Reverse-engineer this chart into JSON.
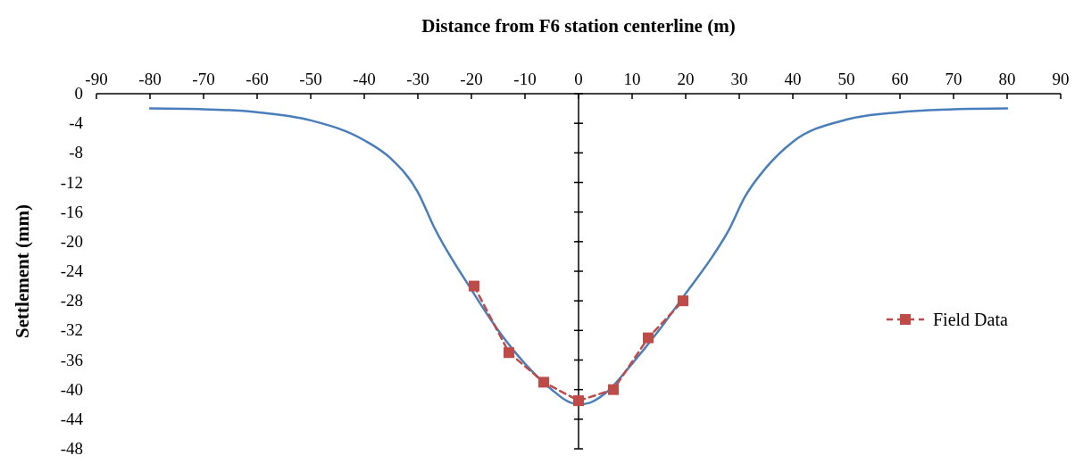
{
  "chart_data": {
    "type": "line",
    "xlabel": "Distance from F6 station centerline (m)",
    "ylabel": "Settlement (mm)",
    "xlim": [
      -90,
      90
    ],
    "xticks": [
      -90,
      -80,
      -70,
      -60,
      -50,
      -40,
      -30,
      -20,
      -10,
      0,
      10,
      20,
      30,
      40,
      50,
      60,
      70,
      80,
      90
    ],
    "ylim": [
      -48,
      0
    ],
    "yticks": [
      0,
      -4,
      -8,
      -12,
      -16,
      -20,
      -24,
      -28,
      -32,
      -36,
      -40,
      -44,
      -48
    ],
    "legend": "right",
    "series": [
      {
        "color": "#4a7ebb",
        "marker": "none",
        "line_style": "solid",
        "x": [
          -80,
          -70,
          -60,
          -50,
          -40,
          -35,
          -30,
          -27,
          -20,
          -15,
          -10,
          -5,
          -2,
          0,
          2,
          5,
          10,
          15,
          20,
          25,
          28,
          31,
          35,
          40,
          50,
          60,
          70,
          80
        ],
        "values": [
          -2,
          -2.1,
          -2.5,
          -3.6,
          -6.3,
          -8.8,
          -13.3,
          -18,
          -26.5,
          -32,
          -36.5,
          -40,
          -41.6,
          -42,
          -41.8,
          -40.5,
          -36.5,
          -32,
          -27,
          -22,
          -18.5,
          -14,
          -10,
          -6.5,
          -3.5,
          -2.5,
          -2.1,
          -2
        ]
      },
      {
        "name": "Field Data",
        "color": "#be4b48",
        "marker": "square",
        "line_style": "dashed",
        "x": [
          -19.5,
          -13,
          -6.5,
          0,
          6.5,
          13,
          19.5
        ],
        "values": [
          -26,
          -35,
          -39,
          -41.5,
          -40,
          -33,
          -28
        ]
      }
    ]
  }
}
